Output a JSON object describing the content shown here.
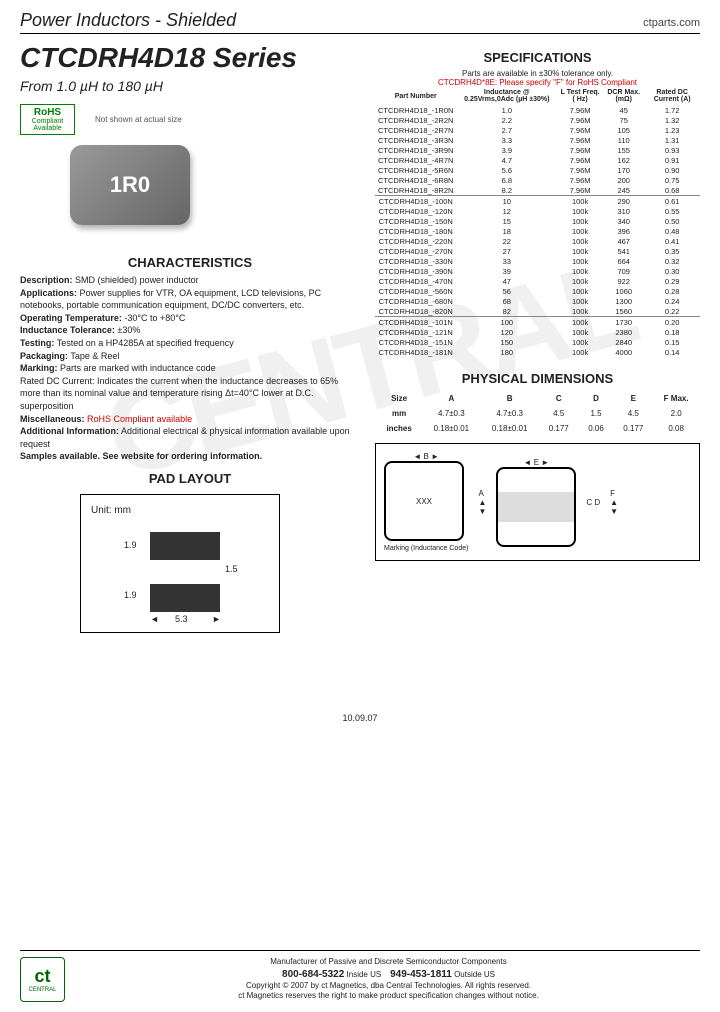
{
  "header": {
    "title": "Power Inductors - Shielded",
    "site": "ctparts.com"
  },
  "series": {
    "title": "CTCDRH4D18 Series",
    "sub": "From 1.0 µH to 180 µH",
    "img_note": "Not shown at actual size",
    "img_label": "1R0"
  },
  "rohs": {
    "big": "RoHS",
    "l1": "Compliant",
    "l2": "Available"
  },
  "spec": {
    "heading": "SPECIFICATIONS",
    "note1": "Parts are available in ±30% tolerance only.",
    "note2": "CTCDRH4D*8E: Please specify \"F\" for RoHS Compliant",
    "cols": [
      "Part Number",
      "Inductance @ 0.25Vrms,0Adc (µH ±30%)",
      "L Test Freq. ( Hz)",
      "DCR Max. (mΩ)",
      "Rated DC Current (A)"
    ],
    "rows": [
      [
        "CTCDRH4D18_-1R0N",
        "1.0",
        "7.96M",
        "45",
        "1.72"
      ],
      [
        "CTCDRH4D18_-2R2N",
        "2.2",
        "7.96M",
        "75",
        "1.32"
      ],
      [
        "CTCDRH4D18_-2R7N",
        "2.7",
        "7.96M",
        "105",
        "1.23"
      ],
      [
        "CTCDRH4D18_-3R3N",
        "3.3",
        "7.96M",
        "110",
        "1.31"
      ],
      [
        "CTCDRH4D18_-3R9N",
        "3.9",
        "7.96M",
        "155",
        "0.93"
      ],
      [
        "CTCDRH4D18_-4R7N",
        "4.7",
        "7.96M",
        "162",
        "0.91"
      ],
      [
        "CTCDRH4D18_-5R6N",
        "5.6",
        "7.96M",
        "170",
        "0.90"
      ],
      [
        "CTCDRH4D18_-6R8N",
        "6.8",
        "7.96M",
        "200",
        "0.75"
      ],
      [
        "CTCDRH4D18_-8R2N",
        "8.2",
        "7.96M",
        "245",
        "0.68"
      ]
    ],
    "rows2": [
      [
        "CTCDRH4D18_-100N",
        "10",
        "100k",
        "290",
        "0.61"
      ],
      [
        "CTCDRH4D18_-120N",
        "12",
        "100k",
        "310",
        "0.55"
      ],
      [
        "CTCDRH4D18_-150N",
        "15",
        "100k",
        "340",
        "0.50"
      ],
      [
        "CTCDRH4D18_-180N",
        "18",
        "100k",
        "396",
        "0.48"
      ],
      [
        "CTCDRH4D18_-220N",
        "22",
        "100k",
        "467",
        "0.41"
      ],
      [
        "CTCDRH4D18_-270N",
        "27",
        "100k",
        "541",
        "0.35"
      ],
      [
        "CTCDRH4D18_-330N",
        "33",
        "100k",
        "664",
        "0.32"
      ],
      [
        "CTCDRH4D18_-390N",
        "39",
        "100k",
        "709",
        "0.30"
      ],
      [
        "CTCDRH4D18_-470N",
        "47",
        "100k",
        "922",
        "0.29"
      ],
      [
        "CTCDRH4D18_-560N",
        "56",
        "100k",
        "1060",
        "0.28"
      ],
      [
        "CTCDRH4D18_-680N",
        "68",
        "100k",
        "1300",
        "0.24"
      ],
      [
        "CTCDRH4D18_-820N",
        "82",
        "100k",
        "1560",
        "0.22"
      ]
    ],
    "rows3": [
      [
        "CTCDRH4D18_-101N",
        "100",
        "100k",
        "1730",
        "0.20"
      ],
      [
        "CTCDRH4D18_-121N",
        "120",
        "100k",
        "2380",
        "0.18"
      ],
      [
        "CTCDRH4D18_-151N",
        "150",
        "100k",
        "2840",
        "0.15"
      ],
      [
        "CTCDRH4D18_-181N",
        "180",
        "100k",
        "4000",
        "0.14"
      ]
    ]
  },
  "char": {
    "heading": "CHARACTERISTICS",
    "desc_l": "Description:",
    "desc": "SMD (shielded) power inductor",
    "app_l": "Applications:",
    "app": "Power supplies for VTR, OA equipment, LCD televisions, PC notebooks, portable communication equipment, DC/DC converters, etc.",
    "temp_l": "Operating Temperature:",
    "temp": "-30°C to +80°C",
    "tol_l": "Inductance Tolerance:",
    "tol": "±30%",
    "test_l": "Testing:",
    "test": "Tested on a HP4285A at specified frequency",
    "pkg_l": "Packaging:",
    "pkg": "Tape & Reel",
    "mark_l": "Marking:",
    "mark": "Parts are marked with inductance code",
    "dc": "Rated DC Current: Indicates the current when the inductance decreases to 65% more than its nominal value and temperature rising Δt=40°C lower at D.C. superposition",
    "misc_l": "Miscellaneous:",
    "misc": "RoHS Compliant available",
    "add_l": "Additional Information:",
    "add": "Additional electrical & physical information available upon request",
    "samp": "Samples available. See website for ordering information."
  },
  "phys": {
    "heading": "PHYSICAL DIMENSIONS",
    "cols": [
      "Size",
      "A",
      "B",
      "C",
      "D",
      "E",
      "F Max."
    ],
    "mm": [
      "mm",
      "4.7±0.3",
      "4.7±0.3",
      "4.5",
      "1.5",
      "4.5",
      "2.0"
    ],
    "in": [
      "inches",
      "0.18±0.01",
      "0.18±0.01",
      "0.177",
      "0.06",
      "0.177",
      "0.08"
    ],
    "marking": "Marking (Inductance Code)",
    "xxx": "XXX"
  },
  "pad": {
    "heading": "PAD LAYOUT",
    "unit": "Unit: mm",
    "v1": "1.9",
    "v2": "1.9",
    "v3": "1.5",
    "w": "5.3"
  },
  "date": "10.09.07",
  "footer": {
    "l1": "Manufacturer of Passive and Discrete Semiconductor Components",
    "tel1": "800-684-5322",
    "tel1s": "Inside US",
    "tel2": "949-453-1811",
    "tel2s": "Outside US",
    "l3": "Copyright © 2007 by ct Magnetics, dba Central Technologies. All rights reserved.",
    "l4": "ct Magnetics reserves the right to make product specification changes without notice."
  }
}
